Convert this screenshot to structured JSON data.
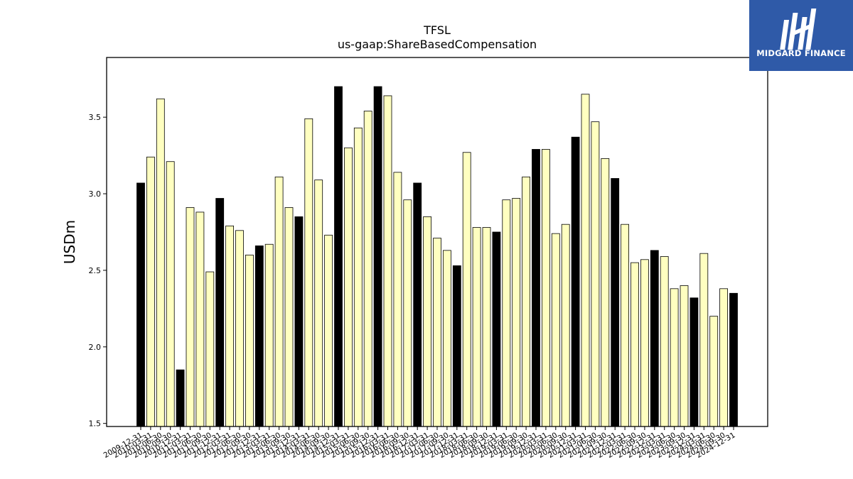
{
  "logo": {
    "text": "MIDGARD FINANCE",
    "background": "#2f5aa8"
  },
  "chart_data": {
    "type": "bar",
    "title": "TFSL",
    "subtitle": "us-gaap:ShareBasedCompensation",
    "ylabel": "USDm",
    "xlabel": "",
    "ylim": [
      1.48,
      3.89
    ],
    "yticks": [
      1.5,
      2.0,
      2.5,
      3.0,
      3.5
    ],
    "grid": false,
    "colors": {
      "q4": "#000000",
      "other": "#ffffc0",
      "edge": "#000000"
    },
    "categories": [
      "2009-12-31",
      "2010-03-31",
      "2010-06-30",
      "2010-09-30",
      "2010-12-31",
      "2011-03-31",
      "2011-06-30",
      "2011-09-30",
      "2011-12-31",
      "2012-03-31",
      "2012-06-30",
      "2012-09-30",
      "2012-12-31",
      "2013-03-31",
      "2013-06-30",
      "2013-09-30",
      "2013-12-31",
      "2014-03-31",
      "2014-06-30",
      "2014-09-30",
      "2014-12-31",
      "2015-03-31",
      "2015-06-30",
      "2015-09-30",
      "2015-12-31",
      "2016-03-31",
      "2016-06-30",
      "2016-09-30",
      "2016-12-31",
      "2017-03-31",
      "2017-06-30",
      "2017-09-30",
      "2017-12-31",
      "2018-03-31",
      "2018-06-30",
      "2018-09-30",
      "2018-12-31",
      "2019-03-31",
      "2019-06-30",
      "2019-09-30",
      "2019-12-31",
      "2020-03-31",
      "2020-06-30",
      "2020-09-30",
      "2020-12-31",
      "2021-03-31",
      "2021-06-30",
      "2021-09-30",
      "2021-12-31",
      "2022-03-31",
      "2022-06-30",
      "2022-09-30",
      "2022-12-31",
      "2023-03-31",
      "2023-06-30",
      "2023-09-30",
      "2023-12-31",
      "2024-03-31",
      "2024-06-30",
      "2024-09-30",
      "2024-12-31"
    ],
    "values": [
      3.07,
      3.24,
      3.62,
      3.21,
      1.85,
      2.91,
      2.88,
      2.49,
      2.97,
      2.79,
      2.76,
      2.6,
      2.66,
      2.67,
      3.11,
      2.91,
      2.85,
      3.49,
      3.09,
      2.73,
      3.7,
      3.3,
      3.43,
      3.54,
      3.7,
      3.64,
      3.14,
      2.96,
      3.07,
      2.85,
      2.71,
      2.63,
      2.53,
      3.27,
      2.78,
      2.78,
      2.75,
      2.96,
      2.97,
      3.11,
      3.29,
      3.29,
      2.74,
      2.8,
      3.37,
      3.65,
      3.47,
      3.23,
      3.1,
      2.8,
      2.55,
      2.57,
      2.63,
      2.59,
      2.38,
      2.4,
      2.32,
      2.61,
      2.2,
      2.38,
      2.35
    ]
  }
}
